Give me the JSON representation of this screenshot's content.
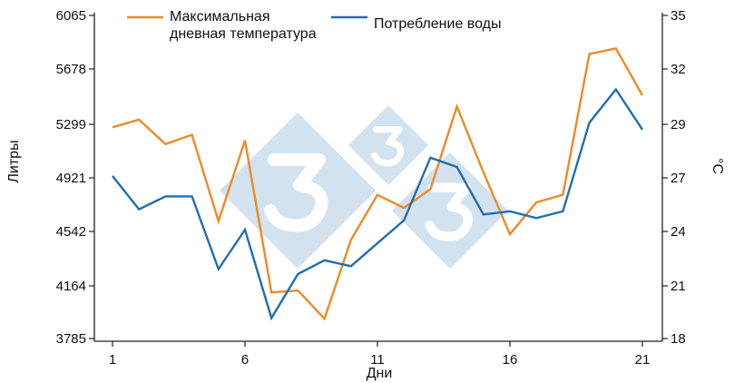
{
  "chart_data": {
    "type": "line",
    "xlabel": "Дни",
    "ylabel_left": "Литры",
    "ylabel_right": "°C",
    "x": [
      1,
      2,
      3,
      4,
      5,
      6,
      7,
      8,
      9,
      10,
      11,
      12,
      13,
      14,
      15,
      16,
      17,
      18,
      19,
      20,
      21
    ],
    "x_ticks": [
      "1",
      "6",
      "11",
      "16",
      "21"
    ],
    "y_left_ticks": [
      "3785",
      "4164",
      "4542",
      "4921",
      "5299",
      "5678",
      "6065"
    ],
    "y_right_ticks": [
      "18",
      "21",
      "24",
      "27",
      "29",
      "32",
      "35"
    ],
    "ylim_left": [
      3785,
      6065
    ],
    "ylim_right": [
      17.5,
      35
    ],
    "legend_position": "top",
    "series": [
      {
        "name": "Максимальная\nдневная температура",
        "axis": "right",
        "color": "#ee8a25",
        "values": [
          28.9,
          29.3,
          28.0,
          28.5,
          23.9,
          28.2,
          20.1,
          20.2,
          18.7,
          22.9,
          25.3,
          24.6,
          25.6,
          30.0,
          26.5,
          23.2,
          24.9,
          25.3,
          32.8,
          33.1,
          30.6
        ]
      },
      {
        "name": "Потребление воды",
        "axis": "left",
        "color": "#1f6eb0",
        "values": [
          4932,
          4701,
          4790,
          4790,
          4286,
          4559,
          3946,
          4252,
          4347,
          4306,
          4465,
          4624,
          5059,
          4994,
          4665,
          4687,
          4640,
          4687,
          5302,
          5533,
          5254
        ]
      }
    ]
  },
  "watermark": {
    "color": "#d3e2ef"
  }
}
